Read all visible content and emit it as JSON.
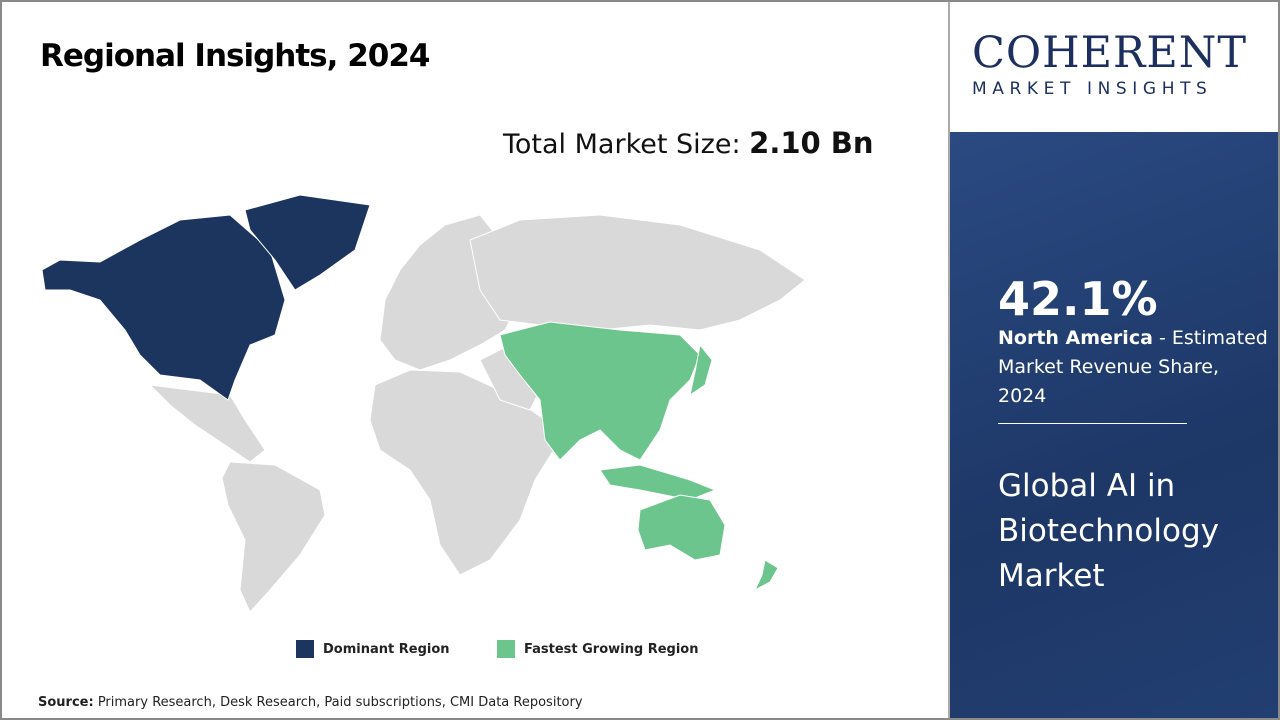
{
  "header": {
    "title": "Regional Insights, 2024"
  },
  "market_size": {
    "label": "Total Market Size:",
    "value": "2.10 Bn"
  },
  "map": {
    "colors": {
      "dominant": "#1c355e",
      "fastest": "#6cc58c",
      "other": "#d9d9d9"
    },
    "dominant_region": "North America",
    "fastest_growing_region": "Asia Pacific"
  },
  "legend": [
    {
      "label": "Dominant Region",
      "color": "#1c355e"
    },
    {
      "label": "Fastest Growing Region",
      "color": "#6cc58c"
    }
  ],
  "source": {
    "label": "Source:",
    "text": " Primary Research, Desk Research, Paid subscriptions, CMI Data Repository"
  },
  "logo": {
    "line1": "COHERENT",
    "line2": "MARKET INSIGHTS"
  },
  "panel": {
    "share": "42.1%",
    "region": "North America",
    "desc": " - Estimated Market Revenue Share, 2024",
    "market_line1": "Global AI in",
    "market_line2": "Biotechnology",
    "market_line3": "Market"
  }
}
